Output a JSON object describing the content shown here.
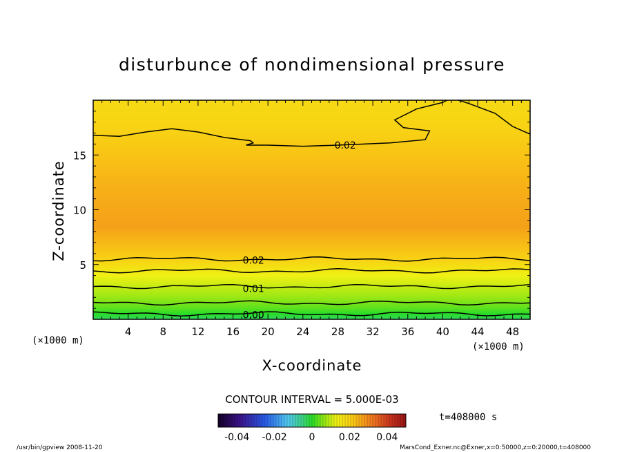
{
  "chart_data": {
    "type": "contour",
    "title": "disturbunce of nondimensional pressure",
    "xlabel": "X-coordinate",
    "ylabel": "Z-coordinate",
    "x_unit_label": "(×1000 m)",
    "x_unit_label_right": "(×1000 m)",
    "xlim": [
      0,
      50
    ],
    "ylim": [
      0,
      20
    ],
    "xticks": [
      4,
      8,
      12,
      16,
      20,
      24,
      28,
      32,
      36,
      40,
      44,
      48
    ],
    "yticks": [
      5,
      10,
      15
    ],
    "z_profile": [
      {
        "z": 0.0,
        "value": -0.003
      },
      {
        "z": 0.5,
        "value": 0.0
      },
      {
        "z": 1.0,
        "value": 0.003
      },
      {
        "z": 2.0,
        "value": 0.007
      },
      {
        "z": 3.0,
        "value": 0.01
      },
      {
        "z": 4.0,
        "value": 0.013
      },
      {
        "z": 5.5,
        "value": 0.02
      },
      {
        "z": 8.5,
        "value": 0.027
      },
      {
        "z": 12.0,
        "value": 0.025
      },
      {
        "z": 14.5,
        "value": 0.023
      },
      {
        "z": 17.0,
        "value": 0.02
      },
      {
        "z": 20.0,
        "value": 0.018
      }
    ],
    "contour_labels": [
      {
        "text": "0.02",
        "x": 27.5,
        "z": 15.9
      },
      {
        "text": "0.02",
        "x": 17.0,
        "z": 5.4
      },
      {
        "text": "0.01",
        "x": 17.0,
        "z": 2.8
      },
      {
        "text": "0.00",
        "x": 17.0,
        "z": 0.4
      }
    ],
    "contour_interval_text": "CONTOUR INTERVAL = 5.000E-03",
    "colorbar": {
      "min": -0.05,
      "max": 0.05,
      "tick_labels": [
        "-0.04",
        "-0.02",
        "0",
        "0.02",
        "0.04"
      ],
      "tick_values": [
        -0.04,
        -0.02,
        0,
        0.02,
        0.04
      ]
    },
    "time_label": "t=408000 s"
  },
  "footer": {
    "left": "/usr/bin/gpview  2008-11-20",
    "right": "MarsCond_Exner.nc@Exner,x=0:50000,z=0:20000,t=408000"
  }
}
